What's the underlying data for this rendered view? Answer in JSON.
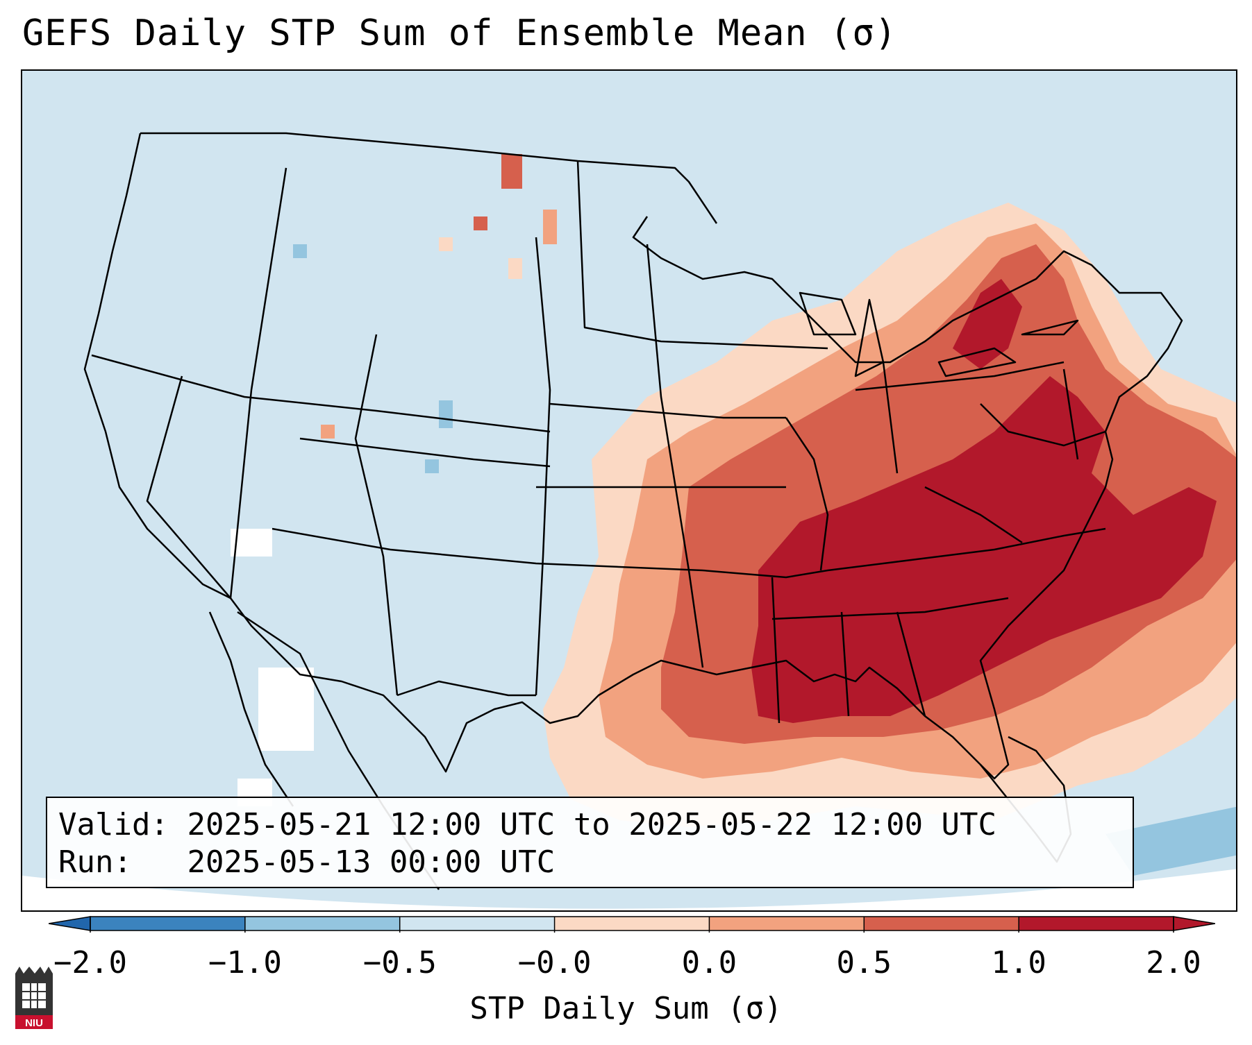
{
  "title": "GEFS Daily STP Sum of Ensemble Mean (σ)",
  "info": {
    "valid_label": "Valid:",
    "valid_value": "2025-05-21 12:00 UTC to 2025-05-22 12:00 UTC",
    "run_label": "Run:",
    "run_value": "2025-05-13 00:00 UTC"
  },
  "colorbar": {
    "label": "STP Daily Sum (σ)",
    "ticks": [
      "−2.0",
      "−1.0",
      "−0.5",
      "−0.0",
      "0.0",
      "0.5",
      "1.0",
      "2.0"
    ],
    "colors": [
      "#3b83be",
      "#94c5df",
      "#d1e5f0",
      "#f7f7f7",
      "#fbd9c4",
      "#f2a27f",
      "#d6604d",
      "#b2182b"
    ],
    "extend_low_color": "#2166ac",
    "extend_high_color": "#b2182b"
  },
  "map": {
    "background_color": "#d1e5f0",
    "region": "Continental United States",
    "max_anomaly_region": "Tennessee Valley, Mississippi, Alabama, Georgia and Mid-Atlantic",
    "logo": "NIU"
  }
}
